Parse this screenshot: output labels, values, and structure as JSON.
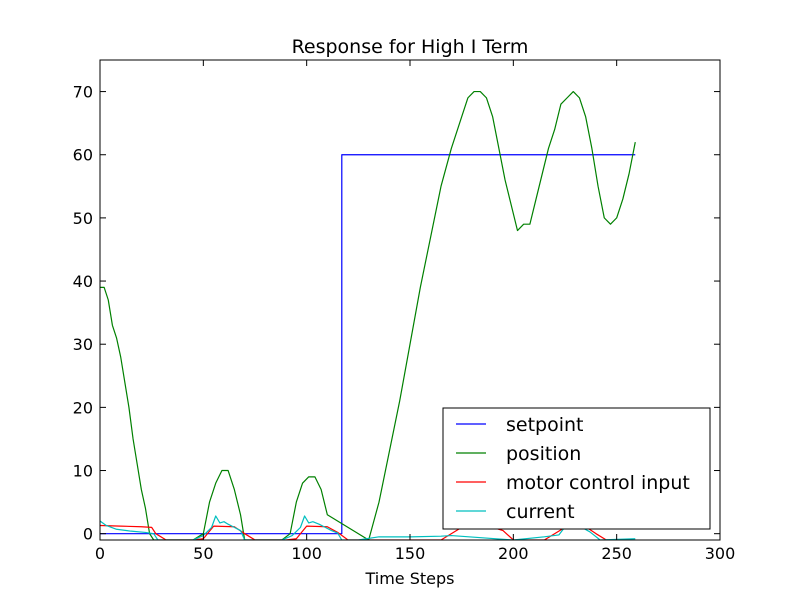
{
  "chart_data": {
    "type": "line",
    "title": "Response for High I Term",
    "xlabel": "Time Steps",
    "ylabel": "",
    "xlim": [
      0,
      300
    ],
    "ylim": [
      -1,
      75
    ],
    "xticks": [
      0,
      50,
      100,
      150,
      200,
      250,
      300
    ],
    "yticks": [
      0,
      10,
      20,
      30,
      40,
      50,
      60,
      70
    ],
    "grid": false,
    "legend_position": "lower-right",
    "series": [
      {
        "name": "setpoint",
        "color": "#0000ff",
        "x": [
          0,
          117,
          117,
          259
        ],
        "y": [
          0,
          0,
          60,
          60
        ]
      },
      {
        "name": "position",
        "color": "#008000",
        "x": [
          0,
          2,
          4,
          6,
          8,
          10,
          12,
          14,
          16,
          18,
          20,
          22,
          24,
          26,
          27,
          45,
          50,
          53,
          56,
          59,
          62,
          65,
          68,
          70,
          88,
          92,
          95,
          98,
          101,
          104,
          107,
          110,
          130,
          135,
          140,
          145,
          150,
          155,
          160,
          165,
          170,
          175,
          178,
          181,
          184,
          187,
          190,
          193,
          196,
          199,
          202,
          205,
          208,
          211,
          214,
          217,
          220,
          223,
          226,
          229,
          232,
          235,
          238,
          241,
          244,
          247,
          250,
          253,
          256,
          259
        ],
        "y": [
          39,
          39,
          37,
          33,
          31,
          28,
          24,
          20,
          15,
          11,
          7,
          4,
          0,
          -1,
          -1,
          -1,
          0,
          5,
          8,
          10,
          10,
          7,
          3,
          -1,
          -1,
          0,
          5,
          8,
          9,
          9,
          7,
          3,
          -1,
          5,
          13,
          21,
          30,
          39,
          47,
          55,
          61,
          66,
          69,
          70,
          70,
          69,
          66,
          61,
          56,
          52,
          48,
          49,
          49,
          53,
          57,
          61,
          64,
          68,
          69,
          70,
          69,
          66,
          61,
          55,
          50,
          49,
          50,
          53,
          57,
          62
        ]
      },
      {
        "name": "motor control input",
        "color": "#ff0000",
        "x": [
          0,
          10,
          20,
          25,
          27,
          32,
          45,
          50,
          55,
          65,
          70,
          75,
          90,
          95,
          100,
          110,
          115,
          120,
          165,
          175,
          178,
          185,
          190,
          195,
          200,
          205,
          215,
          225,
          235,
          240,
          245,
          259
        ],
        "y": [
          1.3,
          1.2,
          1.1,
          1.0,
          0,
          -1,
          -1,
          -0.8,
          1.2,
          1.1,
          0,
          -1,
          -1,
          -0.8,
          1.2,
          1.1,
          0.2,
          -1,
          -1,
          1.0,
          1.2,
          1.2,
          1.0,
          0.5,
          -1,
          -1,
          -1,
          1.0,
          1.1,
          0,
          -1,
          -1
        ]
      },
      {
        "name": "current",
        "color": "#00bfbf",
        "x": [
          0,
          3,
          8,
          15,
          22,
          26,
          28,
          45,
          50,
          54,
          56,
          58,
          60,
          62,
          65,
          68,
          70,
          88,
          93,
          97,
          99,
          101,
          103,
          106,
          109,
          112,
          115,
          117,
          125,
          135,
          150,
          165,
          170,
          200,
          215,
          222,
          226,
          229,
          232,
          237,
          242,
          259
        ],
        "y": [
          2.0,
          1.3,
          0.7,
          0.4,
          0.2,
          0,
          -1,
          -1,
          -0.3,
          1.0,
          2.8,
          1.7,
          1.9,
          1.5,
          1.0,
          0.5,
          -1,
          -1,
          -0.3,
          1.0,
          2.8,
          1.7,
          1.9,
          1.5,
          1.0,
          0.5,
          0.1,
          -1,
          -1,
          -0.5,
          -0.5,
          -0.4,
          -0.3,
          -1,
          -0.5,
          -0.2,
          1.5,
          2.5,
          1.2,
          0.3,
          -1,
          -0.8
        ]
      }
    ]
  }
}
